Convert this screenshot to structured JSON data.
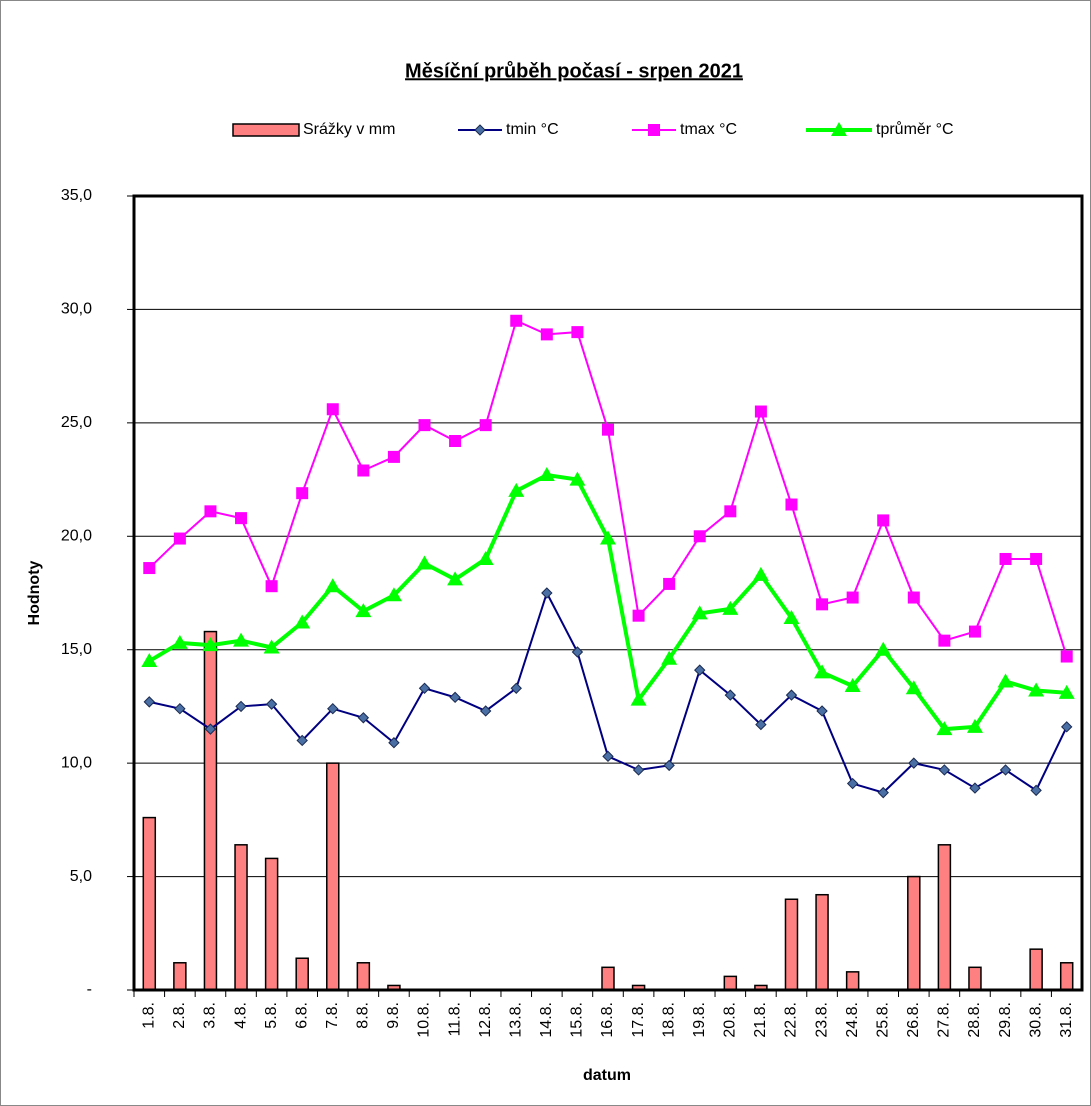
{
  "chart_data": {
    "type": "combo",
    "title": "Měsíční průběh počasí - srpen 2021",
    "x_label": "datum",
    "y_label": "Hodnoty",
    "legend": "top",
    "grid": true,
    "categories": [
      "1.8.",
      "2.8.",
      "3.8.",
      "4.8.",
      "5.8.",
      "6.8.",
      "7.8.",
      "8.8.",
      "9.8.",
      "10.8.",
      "11.8.",
      "12.8.",
      "13.8.",
      "14.8.",
      "15.8.",
      "16.8.",
      "17.8.",
      "18.8.",
      "19.8.",
      "20.8.",
      "21.8.",
      "22.8.",
      "23.8.",
      "24.8.",
      "25.8.",
      "26.8.",
      "27.8.",
      "28.8.",
      "29.8.",
      "30.8.",
      "31.8."
    ],
    "ylim": [
      0,
      35
    ],
    "yticks": [
      {
        "value": 0,
        "label": "-"
      },
      {
        "value": 5,
        "label": "5,0"
      },
      {
        "value": 10,
        "label": "10,0"
      },
      {
        "value": 15,
        "label": "15,0"
      },
      {
        "value": 20,
        "label": "20,0"
      },
      {
        "value": 25,
        "label": "25,0"
      },
      {
        "value": 30,
        "label": "30,0"
      },
      {
        "value": 35,
        "label": "35,0"
      }
    ],
    "series": [
      {
        "name": "Srážky v mm",
        "type": "bar",
        "color": "#ff8080",
        "values": [
          7.6,
          1.2,
          15.8,
          6.4,
          5.8,
          1.4,
          10.0,
          1.2,
          0.2,
          0,
          0,
          0,
          0,
          0,
          0,
          1.0,
          0.2,
          0,
          0,
          0.6,
          0.2,
          4.0,
          4.2,
          0.8,
          0,
          5.0,
          6.4,
          1.0,
          0,
          1.8,
          1.2
        ]
      },
      {
        "name": "tmin °C",
        "type": "line",
        "marker": "diamond",
        "color": "#000080",
        "values": [
          12.7,
          12.4,
          11.5,
          12.5,
          12.6,
          11.0,
          12.4,
          12.0,
          10.9,
          13.3,
          12.9,
          12.3,
          13.3,
          17.5,
          14.9,
          10.3,
          9.7,
          9.9,
          14.1,
          13.0,
          11.7,
          13.0,
          12.3,
          9.1,
          8.7,
          10.0,
          9.7,
          8.9,
          9.7,
          8.8,
          11.6
        ]
      },
      {
        "name": "tmax °C",
        "type": "line",
        "marker": "square",
        "color": "#ff00ff",
        "values": [
          18.6,
          19.9,
          21.1,
          20.8,
          17.8,
          21.9,
          25.6,
          22.9,
          23.5,
          24.9,
          24.2,
          24.9,
          29.5,
          28.9,
          29.0,
          24.7,
          16.5,
          17.9,
          20.0,
          21.1,
          25.5,
          21.4,
          17.0,
          17.3,
          20.7,
          17.3,
          15.4,
          15.8,
          19.0,
          19.0,
          14.7
        ]
      },
      {
        "name": "tprůměr °C",
        "type": "line",
        "marker": "triangle",
        "color": "#00ff00",
        "values": [
          14.5,
          15.3,
          15.2,
          15.4,
          15.1,
          16.2,
          17.8,
          16.7,
          17.4,
          18.8,
          18.1,
          19.0,
          22.0,
          22.7,
          22.5,
          19.9,
          12.8,
          14.6,
          16.6,
          16.8,
          18.3,
          16.4,
          14.0,
          13.4,
          15.0,
          13.3,
          11.5,
          11.6,
          13.6,
          13.2,
          13.1
        ]
      }
    ]
  }
}
